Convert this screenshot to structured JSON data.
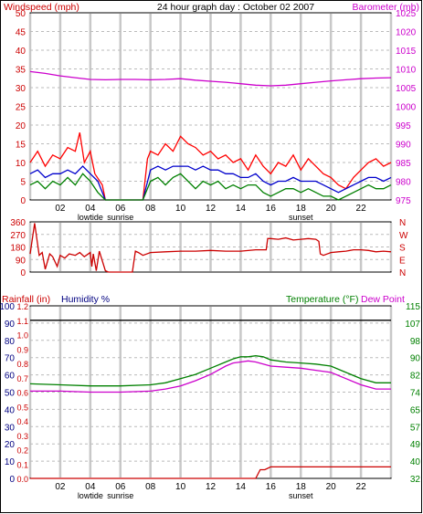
{
  "colors": {
    "wind": "#cc0000",
    "gust": "#ff0000",
    "wind_avg": "#0000cc",
    "wind_green": "#008000",
    "baro": "#cc00cc",
    "dir": "#cc0000",
    "rain": "#cc0000",
    "humidity": "#000080",
    "temp": "#008000",
    "dew": "#cc00cc",
    "grid": "#bbbbbb",
    "gray_bands": "#c8c8c8"
  },
  "header": {
    "left": "Windspeed (mph)",
    "center": "24 hour graph day : October 02 2007",
    "right": "Barometer (mb)"
  },
  "x_axis": {
    "ticks": [
      "02",
      "04",
      "06",
      "08",
      "10",
      "12",
      "14",
      "16",
      "18",
      "20",
      "22"
    ],
    "events": [
      {
        "label": "lowtide",
        "hour": 4
      },
      {
        "label": "sunrise",
        "hour": 6
      },
      {
        "label": "sunset",
        "hour": 18
      }
    ]
  },
  "chart_data": [
    {
      "type": "line",
      "name": "wind-barometer",
      "ylabel_left": "Windspeed (mph)",
      "ylabel_right": "Barometer (mb)",
      "y_left_ticks": [
        "0",
        "5",
        "10",
        "15",
        "20",
        "25",
        "30",
        "35",
        "40",
        "45",
        "50"
      ],
      "y_right_ticks": [
        "975",
        "980",
        "985",
        "990",
        "995",
        "1000",
        "1005",
        "1010",
        "1015",
        "1020",
        "1025"
      ],
      "ylim_left": [
        0,
        50
      ],
      "ylim_right": [
        975,
        1027.5
      ],
      "xlim": [
        0,
        24
      ],
      "series": [
        {
          "key": "gust",
          "axis": "left",
          "x": [
            0,
            0.5,
            1,
            1.5,
            2,
            2.5,
            3,
            3.3,
            3.6,
            4,
            4.3,
            4.8,
            5,
            7.5,
            7.8,
            8,
            8.5,
            9,
            9.5,
            10,
            10.5,
            11,
            11.5,
            12,
            12.5,
            13,
            13.5,
            14,
            14.5,
            15,
            15.5,
            16,
            16.5,
            17,
            17.5,
            18,
            18.5,
            19,
            19.5,
            20,
            20.5,
            21,
            21.5,
            22,
            22.5,
            23,
            23.5,
            24
          ],
          "y": [
            10,
            13,
            9,
            12,
            11,
            14,
            13,
            18,
            10,
            13,
            7,
            4,
            0,
            0,
            11,
            13,
            12,
            15,
            13,
            17,
            15,
            14,
            12,
            13,
            11,
            12,
            10,
            11,
            8,
            12,
            9,
            7,
            10,
            9,
            12,
            8,
            11,
            9,
            7,
            6,
            4,
            3,
            6,
            8,
            10,
            11,
            9,
            10
          ]
        },
        {
          "key": "wind_avg",
          "axis": "left",
          "x": [
            0,
            0.5,
            1,
            1.5,
            2,
            2.5,
            3,
            3.5,
            4,
            4.5,
            5,
            7.5,
            8,
            8.5,
            9,
            9.5,
            10,
            10.5,
            11,
            11.5,
            12,
            12.5,
            13,
            13.5,
            14,
            14.5,
            15,
            15.5,
            16,
            16.5,
            17,
            17.5,
            18,
            18.5,
            19,
            19.5,
            20,
            20.5,
            21,
            21.5,
            22,
            22.5,
            23,
            23.5,
            24
          ],
          "y": [
            7,
            8,
            6,
            7,
            7,
            8,
            7,
            9,
            7,
            5,
            0,
            0,
            8,
            9,
            8,
            9,
            9,
            9,
            8,
            9,
            8,
            8,
            7,
            7,
            6,
            6,
            7,
            5,
            4,
            5,
            5,
            6,
            5,
            5,
            5,
            4,
            3,
            2,
            3,
            4,
            5,
            6,
            6,
            5,
            6
          ]
        },
        {
          "key": "wind_green",
          "axis": "left",
          "x": [
            0,
            0.5,
            1,
            1.5,
            2,
            2.5,
            3,
            3.5,
            4,
            4.5,
            5,
            7.5,
            8,
            8.5,
            9,
            9.5,
            10,
            10.5,
            11,
            11.5,
            12,
            12.5,
            13,
            13.5,
            14,
            14.5,
            15,
            15.5,
            16,
            16.5,
            17,
            17.5,
            18,
            18.5,
            19,
            19.5,
            20,
            20.5,
            21,
            21.5,
            22,
            22.5,
            23,
            23.5,
            24
          ],
          "y": [
            4,
            5,
            3,
            5,
            4,
            6,
            4,
            7,
            5,
            2,
            0,
            0,
            5,
            6,
            4,
            6,
            7,
            5,
            3,
            5,
            4,
            5,
            3,
            4,
            3,
            4,
            4,
            2,
            1,
            2,
            3,
            3,
            2,
            3,
            2,
            1,
            1,
            0,
            1,
            2,
            3,
            4,
            3,
            3,
            4
          ]
        },
        {
          "key": "baro",
          "axis": "right",
          "x": [
            0,
            1,
            2,
            3,
            4,
            5,
            6,
            7,
            8,
            9,
            10,
            11,
            12,
            13,
            14,
            15,
            16,
            17,
            18,
            19,
            20,
            21,
            22,
            23,
            24
          ],
          "y": [
            1011,
            1010.5,
            1009.8,
            1009.3,
            1008.8,
            1008.7,
            1008.8,
            1008.8,
            1008.7,
            1008.8,
            1009,
            1008.6,
            1008.3,
            1008,
            1007.6,
            1007.2,
            1007.0,
            1007.2,
            1007.6,
            1008.0,
            1008.4,
            1008.7,
            1009.0,
            1009.2,
            1009.3
          ]
        }
      ]
    },
    {
      "type": "line",
      "name": "wind-direction",
      "y_left_ticks": [
        "0",
        "90",
        "180",
        "270",
        "360"
      ],
      "y_right_ticks": [
        "N",
        "E",
        "S",
        "W",
        "N"
      ],
      "ylim": [
        0,
        360
      ],
      "xlim": [
        0,
        24
      ],
      "series": [
        {
          "key": "dir",
          "axis": "left",
          "x": [
            0,
            0.3,
            0.6,
            0.8,
            1,
            1.3,
            1.5,
            1.8,
            2,
            2.3,
            2.6,
            3,
            3.3,
            3.6,
            4,
            4.1,
            4.2,
            4.4,
            4.6,
            5,
            5.2,
            6.8,
            7,
            7.2,
            7.5,
            8,
            9,
            10,
            11,
            12,
            13,
            14,
            15,
            15.7,
            15.8,
            16,
            16.5,
            17,
            17.5,
            18,
            18.5,
            19,
            19.2,
            19.3,
            19.5,
            20,
            20.5,
            21,
            21.5,
            22,
            22.5,
            23,
            23.5,
            24
          ],
          "y": [
            130,
            350,
            120,
            140,
            20,
            130,
            110,
            40,
            120,
            100,
            130,
            120,
            140,
            110,
            140,
            40,
            130,
            10,
            150,
            10,
            0,
            0,
            150,
            140,
            120,
            140,
            145,
            150,
            150,
            155,
            150,
            150,
            160,
            160,
            240,
            240,
            235,
            245,
            230,
            235,
            240,
            235,
            220,
            130,
            120,
            140,
            145,
            150,
            160,
            160,
            155,
            145,
            150,
            145
          ]
        }
      ]
    },
    {
      "type": "line",
      "name": "rain-humidity-temp",
      "ylabel_left": "Rainfall (in)",
      "ylabel_left2": "Humidity %",
      "ylabel_right": "Temperature (°F)",
      "ylabel_right2": "Dew Point",
      "y_left_ticks": [
        "0",
        "10",
        "20",
        "30",
        "40",
        "50",
        "60",
        "70",
        "80",
        "90",
        "100"
      ],
      "y_rain_ticks": [
        "0.0",
        "0.1",
        "0.2",
        "0.3",
        "0.4",
        "0.5",
        "0.6",
        "0.7",
        "0.8",
        "0.9",
        "1.0",
        "1.1",
        "1.2"
      ],
      "y_right_ticks": [
        "32",
        "40",
        "49",
        "57",
        "65",
        "74",
        "82",
        "90",
        "98",
        "107",
        "115"
      ],
      "ylim_humidity": [
        0,
        100
      ],
      "ylim_temp": [
        32,
        115
      ],
      "ylim_rain": [
        0,
        1.2
      ],
      "xlim": [
        0,
        24
      ],
      "annotations": [
        "1.1"
      ],
      "series": [
        {
          "key": "temp",
          "axis": "right",
          "x": [
            0,
            2,
            4,
            6,
            8,
            9,
            10,
            11,
            12,
            13,
            13.5,
            14,
            14.5,
            15,
            15.5,
            16,
            17,
            18,
            19,
            20,
            21,
            22,
            23,
            24
          ],
          "y": [
            77.5,
            77,
            76.5,
            76.5,
            77,
            78,
            80,
            82,
            85,
            88,
            89.5,
            90.5,
            90.5,
            91,
            90.5,
            89,
            88,
            87.5,
            87,
            86,
            83,
            80,
            78,
            78
          ]
        },
        {
          "key": "dew",
          "axis": "right",
          "x": [
            0,
            2,
            4,
            6,
            8,
            9,
            10,
            11,
            12,
            13,
            13.5,
            14,
            14.5,
            15,
            15.5,
            16,
            17,
            18,
            19,
            20,
            21,
            22,
            23,
            24
          ],
          "y": [
            74,
            74,
            73.5,
            73.5,
            74,
            75,
            76.5,
            79,
            82,
            86,
            87.5,
            88,
            88.5,
            88,
            87,
            86,
            85.5,
            85,
            84,
            83,
            80,
            77,
            75,
            75
          ]
        },
        {
          "key": "rain",
          "axis": "rain",
          "x": [
            0,
            15,
            15.3,
            15.6,
            16,
            24
          ],
          "y": [
            0,
            0,
            0.06,
            0.06,
            0.08,
            0.08
          ]
        },
        {
          "key": "humidity_top",
          "axis": "rain",
          "x": [
            0,
            24
          ],
          "y": [
            1.1,
            1.1
          ]
        }
      ]
    }
  ]
}
